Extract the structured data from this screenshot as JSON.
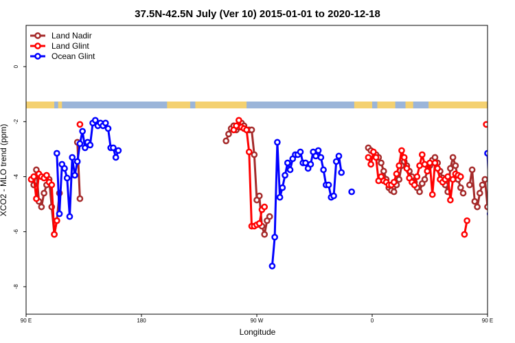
{
  "chart_data": {
    "type": "line",
    "title": "37.5N-42.5N July (Ver 10)   2015-01-01 to 2020-12-18",
    "xlabel": "Longitude",
    "ylabel": "XCO2 - MLO trend (ppm)",
    "xlim": [
      90,
      450
    ],
    "ylim": [
      -9,
      1.5
    ],
    "x_ticks": [
      {
        "value": 90,
        "label": "90 E"
      },
      {
        "value": 180,
        "label": "180"
      },
      {
        "value": 270,
        "label": "90 W"
      },
      {
        "value": 360,
        "label": "0"
      },
      {
        "value": 450,
        "label": "90 E"
      },
      {
        "value": 540,
        "label": "180"
      }
    ],
    "y_ticks": [
      {
        "value": 0,
        "label": "0"
      },
      {
        "value": -2,
        "label": "-2"
      },
      {
        "value": -4,
        "label": "-4"
      },
      {
        "value": -6,
        "label": "-6"
      },
      {
        "value": -8,
        "label": "-8"
      }
    ],
    "grid": false,
    "legend_position": "top-left",
    "series": [
      {
        "name": "Land Nadir",
        "color": "#a52a2a",
        "segments": [
          [
            [
              96,
              -4.3
            ],
            [
              98,
              -3.75
            ],
            [
              100,
              -4.9
            ],
            [
              102,
              -5.1
            ],
            [
              104,
              -4.6
            ],
            [
              106,
              -4.3
            ],
            [
              108,
              -4.1
            ],
            [
              110,
              -5.1
            ],
            [
              112,
              -6.1
            ],
            [
              114,
              -5.6
            ],
            [
              116,
              -4.6
            ]
          ],
          [
            [
              130,
              -2.75
            ],
            [
              132,
              -4.8
            ]
          ],
          [
            [
              246,
              -2.7
            ],
            [
              248,
              -2.45
            ],
            [
              250,
              -2.25
            ],
            [
              252,
              -2.15
            ],
            [
              254,
              -2.3
            ]
          ],
          [
            [
              256,
              -2.2
            ],
            [
              258,
              -2.05
            ],
            [
              260,
              -2.15
            ],
            [
              262,
              -2.3
            ],
            [
              264,
              -2.3
            ],
            [
              266,
              -2.3
            ],
            [
              268,
              -3.2
            ],
            [
              270,
              -4.85
            ],
            [
              272,
              -4.7
            ],
            [
              274,
              -5.8
            ],
            [
              276,
              -6.1
            ],
            [
              278,
              -5.6
            ],
            [
              280,
              -5.45
            ]
          ],
          [
            [
              357,
              -2.95
            ],
            [
              359,
              -3.05
            ],
            [
              363,
              -3.2
            ],
            [
              365,
              -3.3
            ],
            [
              367,
              -3.5
            ],
            [
              369,
              -3.8
            ],
            [
              371,
              -4.1
            ],
            [
              373,
              -4.4
            ],
            [
              375,
              -4.5
            ],
            [
              377,
              -4.55
            ],
            [
              379,
              -4.3
            ],
            [
              381,
              -4.1
            ],
            [
              383,
              -3.6
            ],
            [
              385,
              -3.45
            ],
            [
              387,
              -3.6
            ],
            [
              389,
              -3.8
            ],
            [
              391,
              -4.0
            ],
            [
              393,
              -4.2
            ],
            [
              395,
              -4.4
            ],
            [
              397,
              -4.55
            ],
            [
              399,
              -4.25
            ],
            [
              401,
              -4.1
            ],
            [
              403,
              -3.8
            ],
            [
              405,
              -3.6
            ],
            [
              407,
              -3.4
            ],
            [
              409,
              -3.3
            ],
            [
              411,
              -3.5
            ],
            [
              413,
              -3.8
            ],
            [
              415,
              -4.05
            ],
            [
              417,
              -4.3
            ],
            [
              419,
              -4.55
            ],
            [
              421,
              -3.7
            ],
            [
              423,
              -3.3
            ],
            [
              425,
              -3.6
            ],
            [
              427,
              -4.1
            ],
            [
              429,
              -4.4
            ],
            [
              431,
              -4.6
            ]
          ],
          [
            [
              436,
              -4.3
            ],
            [
              438,
              -3.75
            ],
            [
              440,
              -4.9
            ],
            [
              442,
              -5.1
            ],
            [
              444,
              -4.6
            ],
            [
              446,
              -4.3
            ],
            [
              448,
              -4.1
            ],
            [
              450,
              -5.1
            ]
          ]
        ]
      },
      {
        "name": "Land Glint",
        "color": "#ff0000",
        "segments": [
          [
            [
              94,
              -4.1
            ],
            [
              96,
              -4.0
            ],
            [
              98,
              -4.8
            ],
            [
              100,
              -3.9
            ],
            [
              102,
              -4.0
            ],
            [
              104,
              -4.05
            ],
            [
              106,
              -3.95
            ],
            [
              108,
              -4.2
            ],
            [
              110,
              -4.3
            ],
            [
              112,
              -6.1
            ],
            [
              114,
              -5.6
            ]
          ],
          [
            [
              132,
              -2.1
            ]
          ],
          [
            [
              252,
              -2.3
            ],
            [
              254,
              -2.15
            ],
            [
              256,
              -1.95
            ],
            [
              258,
              -2.2
            ],
            [
              260,
              -2.25
            ],
            [
              262,
              -2.3
            ],
            [
              264,
              -3.1
            ],
            [
              266,
              -5.8
            ],
            [
              268,
              -5.8
            ],
            [
              270,
              -5.75
            ],
            [
              272,
              -5.7
            ],
            [
              274,
              -5.2
            ],
            [
              276,
              -5.1
            ]
          ],
          [
            [
              357,
              -3.3
            ],
            [
              359,
              -3.55
            ],
            [
              361,
              -3.1
            ],
            [
              363,
              -3.3
            ],
            [
              365,
              -4.15
            ],
            [
              367,
              -4.0
            ],
            [
              369,
              -4.15
            ],
            [
              371,
              -4.2
            ],
            [
              373,
              -4.3
            ],
            [
              375,
              -4.3
            ],
            [
              377,
              -4.2
            ],
            [
              379,
              -3.9
            ],
            [
              381,
              -3.6
            ],
            [
              383,
              -3.05
            ],
            [
              385,
              -3.3
            ],
            [
              387,
              -3.7
            ],
            [
              389,
              -4.05
            ],
            [
              391,
              -4.2
            ],
            [
              393,
              -4.3
            ],
            [
              395,
              -4.0
            ],
            [
              397,
              -3.6
            ],
            [
              399,
              -3.2
            ],
            [
              401,
              -3.55
            ],
            [
              403,
              -3.8
            ],
            [
              405,
              -3.5
            ],
            [
              407,
              -4.65
            ],
            [
              409,
              -3.5
            ],
            [
              411,
              -3.7
            ],
            [
              413,
              -4.1
            ],
            [
              415,
              -4.2
            ],
            [
              417,
              -4.1
            ],
            [
              419,
              -4.0
            ],
            [
              421,
              -4.85
            ],
            [
              423,
              -4.1
            ],
            [
              425,
              -3.9
            ],
            [
              427,
              -3.95
            ],
            [
              429,
              -4.0
            ]
          ],
          [
            [
              432,
              -6.1
            ],
            [
              434,
              -5.6
            ]
          ],
          [
            [
              449,
              -2.1
            ]
          ]
        ]
      },
      {
        "name": "Ocean Glint",
        "color": "#0000ff",
        "segments": [
          [
            [
              114,
              -3.15
            ],
            [
              116,
              -5.35
            ],
            [
              118,
              -3.55
            ],
            [
              120,
              -3.7
            ],
            [
              122,
              -4.05
            ],
            [
              124,
              -5.45
            ],
            [
              126,
              -3.3
            ],
            [
              128,
              -3.95
            ],
            [
              130,
              -3.45
            ],
            [
              132,
              -2.8
            ],
            [
              134,
              -2.35
            ],
            [
              136,
              -2.95
            ],
            [
              138,
              -2.75
            ],
            [
              140,
              -2.85
            ],
            [
              142,
              -2.05
            ],
            [
              144,
              -1.95
            ],
            [
              146,
              -2.15
            ],
            [
              148,
              -2.05
            ],
            [
              150,
              -2.15
            ],
            [
              152,
              -2.05
            ],
            [
              154,
              -2.25
            ],
            [
              156,
              -2.95
            ],
            [
              158,
              -2.95
            ],
            [
              160,
              -3.3
            ],
            [
              162,
              -3.05
            ]
          ],
          [
            [
              282,
              -7.25
            ],
            [
              284,
              -6.2
            ],
            [
              286,
              -2.75
            ],
            [
              288,
              -4.75
            ],
            [
              290,
              -4.4
            ],
            [
              292,
              -3.95
            ],
            [
              294,
              -3.5
            ],
            [
              296,
              -3.75
            ],
            [
              298,
              -3.35
            ],
            [
              300,
              -3.2
            ],
            [
              302,
              -3.2
            ],
            [
              304,
              -3.1
            ],
            [
              306,
              -3.5
            ],
            [
              308,
              -3.5
            ],
            [
              310,
              -3.7
            ],
            [
              312,
              -3.55
            ],
            [
              314,
              -3.1
            ],
            [
              316,
              -3.25
            ],
            [
              318,
              -3.05
            ],
            [
              320,
              -3.3
            ],
            [
              322,
              -3.75
            ],
            [
              324,
              -4.3
            ],
            [
              326,
              -4.3
            ],
            [
              328,
              -4.75
            ],
            [
              330,
              -4.7
            ],
            [
              332,
              -3.45
            ],
            [
              334,
              -3.25
            ],
            [
              336,
              -3.85
            ]
          ],
          [
            [
              344,
              -4.55
            ]
          ],
          [
            [
              450,
              -3.15
            ],
            [
              452,
              -5.35
            ],
            [
              454,
              -3.55
            ],
            [
              456,
              -3.7
            ],
            [
              458,
              -4.05
            ],
            [
              460,
              -5.45
            ],
            [
              462,
              -3.3
            ],
            [
              464,
              -3.95
            ],
            [
              466,
              -3.45
            ],
            [
              468,
              -2.8
            ],
            [
              470,
              -2.35
            ],
            [
              472,
              -2.95
            ],
            [
              474,
              -2.75
            ]
          ]
        ]
      }
    ],
    "map_strip_colors": {
      "ocean": "#9bb5d9",
      "land": "#f4d171"
    }
  }
}
